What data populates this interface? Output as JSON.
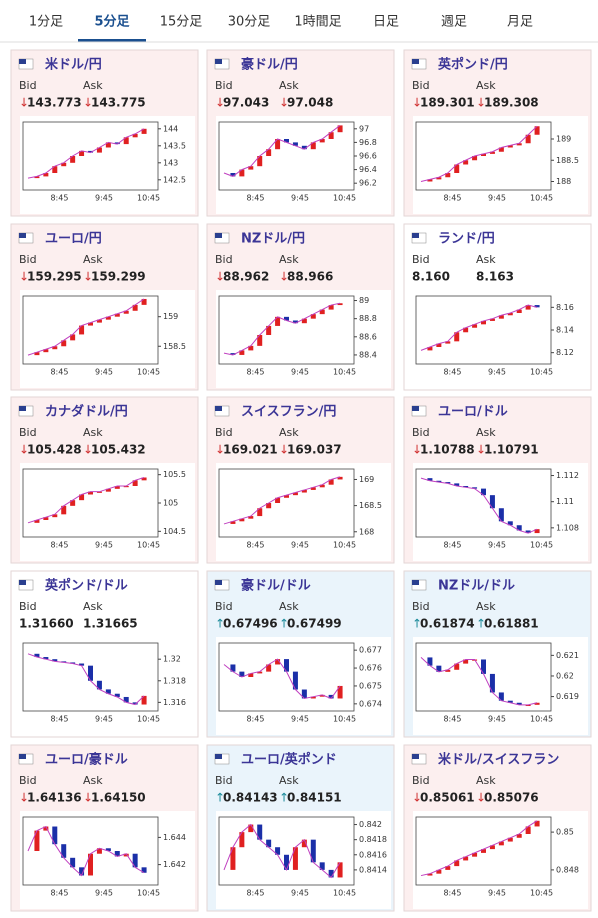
{
  "tabs": [
    "1分足",
    "5分足",
    "15分足",
    "30分足",
    "1時間足",
    "日足",
    "週足",
    "月足"
  ],
  "active_tab": 1,
  "bid_label": "Bid",
  "ask_label": "Ask",
  "cards": [
    {
      "title": "米ドル/円",
      "arrow": "↓",
      "bid": "143.773",
      "ask": "143.775",
      "bg": "#fcefef",
      "chart": {
        "type": "candlestick",
        "closes": [
          142.55,
          142.6,
          142.7,
          142.9,
          143.0,
          143.2,
          143.35,
          143.3,
          143.45,
          143.6,
          143.55,
          143.75,
          143.85,
          144.0
        ],
        "ylim": [
          142.2,
          144.2
        ],
        "yticks": [
          144,
          143.5,
          143,
          142.5
        ],
        "xticks": [
          "8:45",
          "9:45",
          "10:45"
        ]
      }
    },
    {
      "title": "豪ドル/円",
      "arrow": "↓",
      "bid": "97.043",
      "ask": "97.048",
      "bg": "#fcefef",
      "chart": {
        "type": "candlestick",
        "closes": [
          96.35,
          96.3,
          96.4,
          96.45,
          96.6,
          96.7,
          96.85,
          96.8,
          96.75,
          96.7,
          96.8,
          96.85,
          96.95,
          97.05
        ],
        "ylim": [
          96.1,
          97.1
        ],
        "yticks": [
          97,
          96.8,
          96.6,
          96.4,
          96.2
        ],
        "xticks": [
          "8:45",
          "9:45",
          "10:45"
        ]
      }
    },
    {
      "title": "英ポンド/円",
      "arrow": "↓",
      "bid": "189.301",
      "ask": "189.308",
      "bg": "#fcefef",
      "chart": {
        "type": "candlestick",
        "closes": [
          188.0,
          188.05,
          188.1,
          188.2,
          188.4,
          188.5,
          188.6,
          188.65,
          188.7,
          188.8,
          188.85,
          188.9,
          189.1,
          189.3
        ],
        "ylim": [
          187.8,
          189.4
        ],
        "yticks": [
          189,
          188.5,
          188
        ],
        "xticks": [
          "8:45",
          "9:45",
          "10:45"
        ]
      }
    },
    {
      "title": "ユーロ/円",
      "arrow": "↓",
      "bid": "159.295",
      "ask": "159.299",
      "bg": "#fcefef",
      "chart": {
        "type": "candlestick",
        "closes": [
          158.35,
          158.4,
          158.45,
          158.5,
          158.6,
          158.7,
          158.85,
          158.9,
          158.95,
          159.0,
          159.05,
          159.1,
          159.2,
          159.3
        ],
        "ylim": [
          158.2,
          159.35
        ],
        "yticks": [
          159,
          158.5
        ],
        "xticks": [
          "8:45",
          "9:45",
          "10:45"
        ]
      }
    },
    {
      "title": "NZドル/円",
      "arrow": "↓",
      "bid": "88.962",
      "ask": "88.966",
      "bg": "#fcefef",
      "chart": {
        "type": "candlestick",
        "closes": [
          88.42,
          88.4,
          88.45,
          88.5,
          88.62,
          88.72,
          88.82,
          88.78,
          88.75,
          88.8,
          88.85,
          88.9,
          88.95,
          88.97
        ],
        "ylim": [
          88.3,
          89.05
        ],
        "yticks": [
          89,
          88.8,
          88.6,
          88.4
        ],
        "xticks": [
          "8:45",
          "9:45",
          "10:45"
        ]
      }
    },
    {
      "title": "ランド/円",
      "arrow": null,
      "bid": "8.160",
      "ask": "8.163",
      "bg": "#ffffff",
      "chart": {
        "type": "candlestick",
        "closes": [
          8.122,
          8.125,
          8.128,
          8.13,
          8.138,
          8.142,
          8.145,
          8.148,
          8.15,
          8.153,
          8.155,
          8.158,
          8.162,
          8.16
        ],
        "ylim": [
          8.11,
          8.17
        ],
        "yticks": [
          8.16,
          8.14,
          8.12
        ],
        "xticks": [
          "8:45",
          "9:45",
          "10:45"
        ]
      }
    },
    {
      "title": "カナダドル/円",
      "arrow": "↓",
      "bid": "105.428",
      "ask": "105.432",
      "bg": "#fcefef",
      "chart": {
        "type": "candlestick",
        "closes": [
          104.65,
          104.7,
          104.75,
          104.8,
          104.95,
          105.05,
          105.15,
          105.2,
          105.2,
          105.25,
          105.3,
          105.3,
          105.4,
          105.45
        ],
        "ylim": [
          104.4,
          105.6
        ],
        "yticks": [
          105.5,
          105,
          104.5
        ],
        "xticks": [
          "8:45",
          "9:45",
          "10:45"
        ]
      }
    },
    {
      "title": "スイスフラン/円",
      "arrow": "↓",
      "bid": "169.021",
      "ask": "169.037",
      "bg": "#fcefef",
      "chart": {
        "type": "candlestick",
        "closes": [
          168.15,
          168.2,
          168.25,
          168.3,
          168.45,
          168.55,
          168.65,
          168.7,
          168.75,
          168.8,
          168.85,
          168.9,
          169.0,
          169.05
        ],
        "ylim": [
          167.9,
          169.2
        ],
        "yticks": [
          169,
          168.5,
          168
        ],
        "xticks": [
          "8:45",
          "9:45",
          "10:45"
        ]
      }
    },
    {
      "title": "ユーロ/ドル",
      "arrow": "↓",
      "bid": "1.10788",
      "ask": "1.10791",
      "bg": "#fcefef",
      "chart": {
        "type": "candlestick",
        "closes": [
          1.1118,
          1.1116,
          1.1115,
          1.1114,
          1.1112,
          1.1111,
          1.111,
          1.1105,
          1.1095,
          1.1085,
          1.1082,
          1.1078,
          1.1076,
          1.1079
        ],
        "ylim": [
          1.1073,
          1.1125
        ],
        "yticks": [
          1.112,
          1.11,
          1.108
        ],
        "xticks": [
          "8:45",
          "9:45",
          "10:45"
        ]
      }
    },
    {
      "title": "英ポンド/ドル",
      "arrow": null,
      "bid": "1.31660",
      "ask": "1.31665",
      "bg": "#ffffff",
      "chart": {
        "type": "candlestick",
        "closes": [
          1.3205,
          1.3202,
          1.32,
          1.3198,
          1.3197,
          1.3196,
          1.3194,
          1.318,
          1.3172,
          1.3168,
          1.3165,
          1.316,
          1.3158,
          1.3166
        ],
        "ylim": [
          1.3152,
          1.3215
        ],
        "yticks": [
          1.32,
          1.318,
          1.316
        ],
        "xticks": [
          "8:45",
          "9:45",
          "10:45"
        ]
      }
    },
    {
      "title": "豪ドル/ドル",
      "arrow": "↑",
      "bid": "0.67496",
      "ask": "0.67499",
      "bg": "#eaf4fb",
      "chart": {
        "type": "candlestick",
        "closes": [
          0.6762,
          0.6758,
          0.6755,
          0.6757,
          0.6758,
          0.6762,
          0.6765,
          0.6758,
          0.6748,
          0.6743,
          0.6744,
          0.6745,
          0.6743,
          0.675
        ],
        "ylim": [
          0.6736,
          0.6774
        ],
        "yticks": [
          0.677,
          0.676,
          0.675,
          0.674
        ],
        "xticks": [
          "8:45",
          "9:45",
          "10:45"
        ]
      }
    },
    {
      "title": "NZドル/ドル",
      "arrow": "↑",
      "bid": "0.61874",
      "ask": "0.61881",
      "bg": "#eaf4fb",
      "chart": {
        "type": "candlestick",
        "closes": [
          0.6209,
          0.6205,
          0.6202,
          0.6203,
          0.6206,
          0.6208,
          0.6208,
          0.6201,
          0.6192,
          0.6188,
          0.6187,
          0.6186,
          0.6186,
          0.6187
        ],
        "ylim": [
          0.6183,
          0.6216
        ],
        "yticks": [
          0.621,
          0.62,
          0.619
        ],
        "xticks": [
          "8:45",
          "9:45",
          "10:45"
        ]
      }
    },
    {
      "title": "ユーロ/豪ドル",
      "arrow": "↓",
      "bid": "1.64136",
      "ask": "1.64150",
      "bg": "#fcefef",
      "chart": {
        "type": "candlestick",
        "closes": [
          1.643,
          1.6445,
          1.6448,
          1.6435,
          1.6425,
          1.6418,
          1.6412,
          1.6428,
          1.6432,
          1.643,
          1.6426,
          1.6428,
          1.6418,
          1.6414
        ],
        "ylim": [
          1.6405,
          1.6455
        ],
        "yticks": [
          1.644,
          1.642
        ],
        "xticks": [
          "8:45",
          "9:45",
          "10:45"
        ]
      }
    },
    {
      "title": "ユーロ/英ポンド",
      "arrow": "↑",
      "bid": "0.84143",
      "ask": "0.84151",
      "bg": "#eaf4fb",
      "chart": {
        "type": "candlestick",
        "closes": [
          0.8414,
          0.8417,
          0.8419,
          0.842,
          0.8418,
          0.8417,
          0.8416,
          0.8414,
          0.8417,
          0.8418,
          0.8415,
          0.8414,
          0.8413,
          0.8415
        ],
        "ylim": [
          0.8412,
          0.8421
        ],
        "yticks": [
          0.842,
          0.8418,
          0.8416,
          0.8414
        ],
        "xticks": [
          "8:45",
          "9:45",
          "10:45"
        ]
      }
    },
    {
      "title": "米ドル/スイスフラン",
      "arrow": "↓",
      "bid": "0.85061",
      "ask": "0.85076",
      "bg": "#fcefef",
      "chart": {
        "type": "candlestick",
        "closes": [
          0.8477,
          0.8478,
          0.848,
          0.8482,
          0.8485,
          0.8487,
          0.8489,
          0.8491,
          0.8493,
          0.8495,
          0.8497,
          0.8499,
          0.8503,
          0.8506
        ],
        "ylim": [
          0.8472,
          0.8508
        ],
        "yticks": [
          0.85,
          0.848
        ],
        "xticks": [
          "8:45",
          "9:45",
          "10:45"
        ]
      }
    }
  ]
}
